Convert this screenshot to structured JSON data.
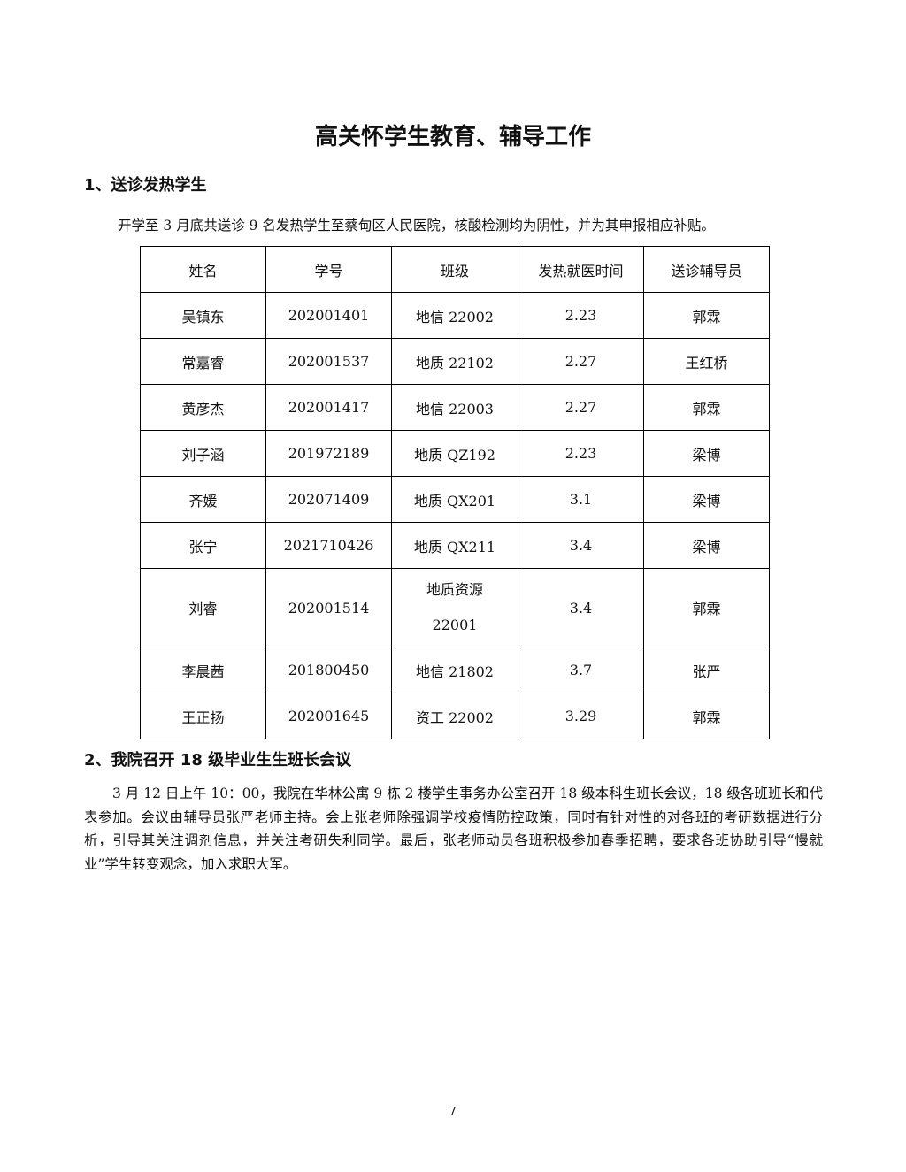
{
  "title": "高关怀学生教育、辅导工作",
  "section1": {
    "heading": "1、送诊发热学生",
    "intro": "开学至 3 月底共送诊 9 名发热学生至蔡甸区人民医院，核酸检测均为阴性，并为其申报相应补贴。"
  },
  "table": {
    "headers": [
      "姓名",
      "学号",
      "班级",
      "发热就医时间",
      "送诊辅导员"
    ],
    "rows": [
      [
        "吴镇东",
        "202001401",
        "地信 22002",
        "2.23",
        "郭霖"
      ],
      [
        "常嘉睿",
        "202001537",
        "地质 22102",
        "2.27",
        "王红桥"
      ],
      [
        "黄彦杰",
        "202001417",
        "地信 22003",
        "2.27",
        "郭霖"
      ],
      [
        "刘子涵",
        "201972189",
        "地质 QZ192",
        "2.23",
        "梁博"
      ],
      [
        "齐媛",
        "202071409",
        "地质 QX201",
        "3.1",
        "梁博"
      ],
      [
        "张宁",
        "2021710426",
        "地质 QX211",
        "3.4",
        "梁博"
      ],
      [
        "刘睿",
        "202001514",
        "地质资源 22001",
        "3.4",
        "郭霖"
      ],
      [
        "李晨茜",
        "201800450",
        "地信 21802",
        "3.7",
        "张严"
      ],
      [
        "王正扬",
        "202001645",
        "资工 22002",
        "3.29",
        "郭霖"
      ]
    ]
  },
  "section2": {
    "heading": "2、我院召开 18 级毕业生生班长会议",
    "body": "3 月 12 日上午 10：00，我院在华林公寓 9 栋 2 楼学生事务办公室召开 18 级本科生班长会议，18 级各班班长和代表参加。会议由辅导员张严老师主持。会上张老师除强调学校疫情防控政策，同时有针对性的对各班的考研数据进行分析，引导其关注调剂信息，并关注考研失利同学。最后，张老师动员各班积极参加春季招聘，要求各班协助引导“慢就业”学生转变观念，加入求职大军。"
  },
  "page_number": "7"
}
